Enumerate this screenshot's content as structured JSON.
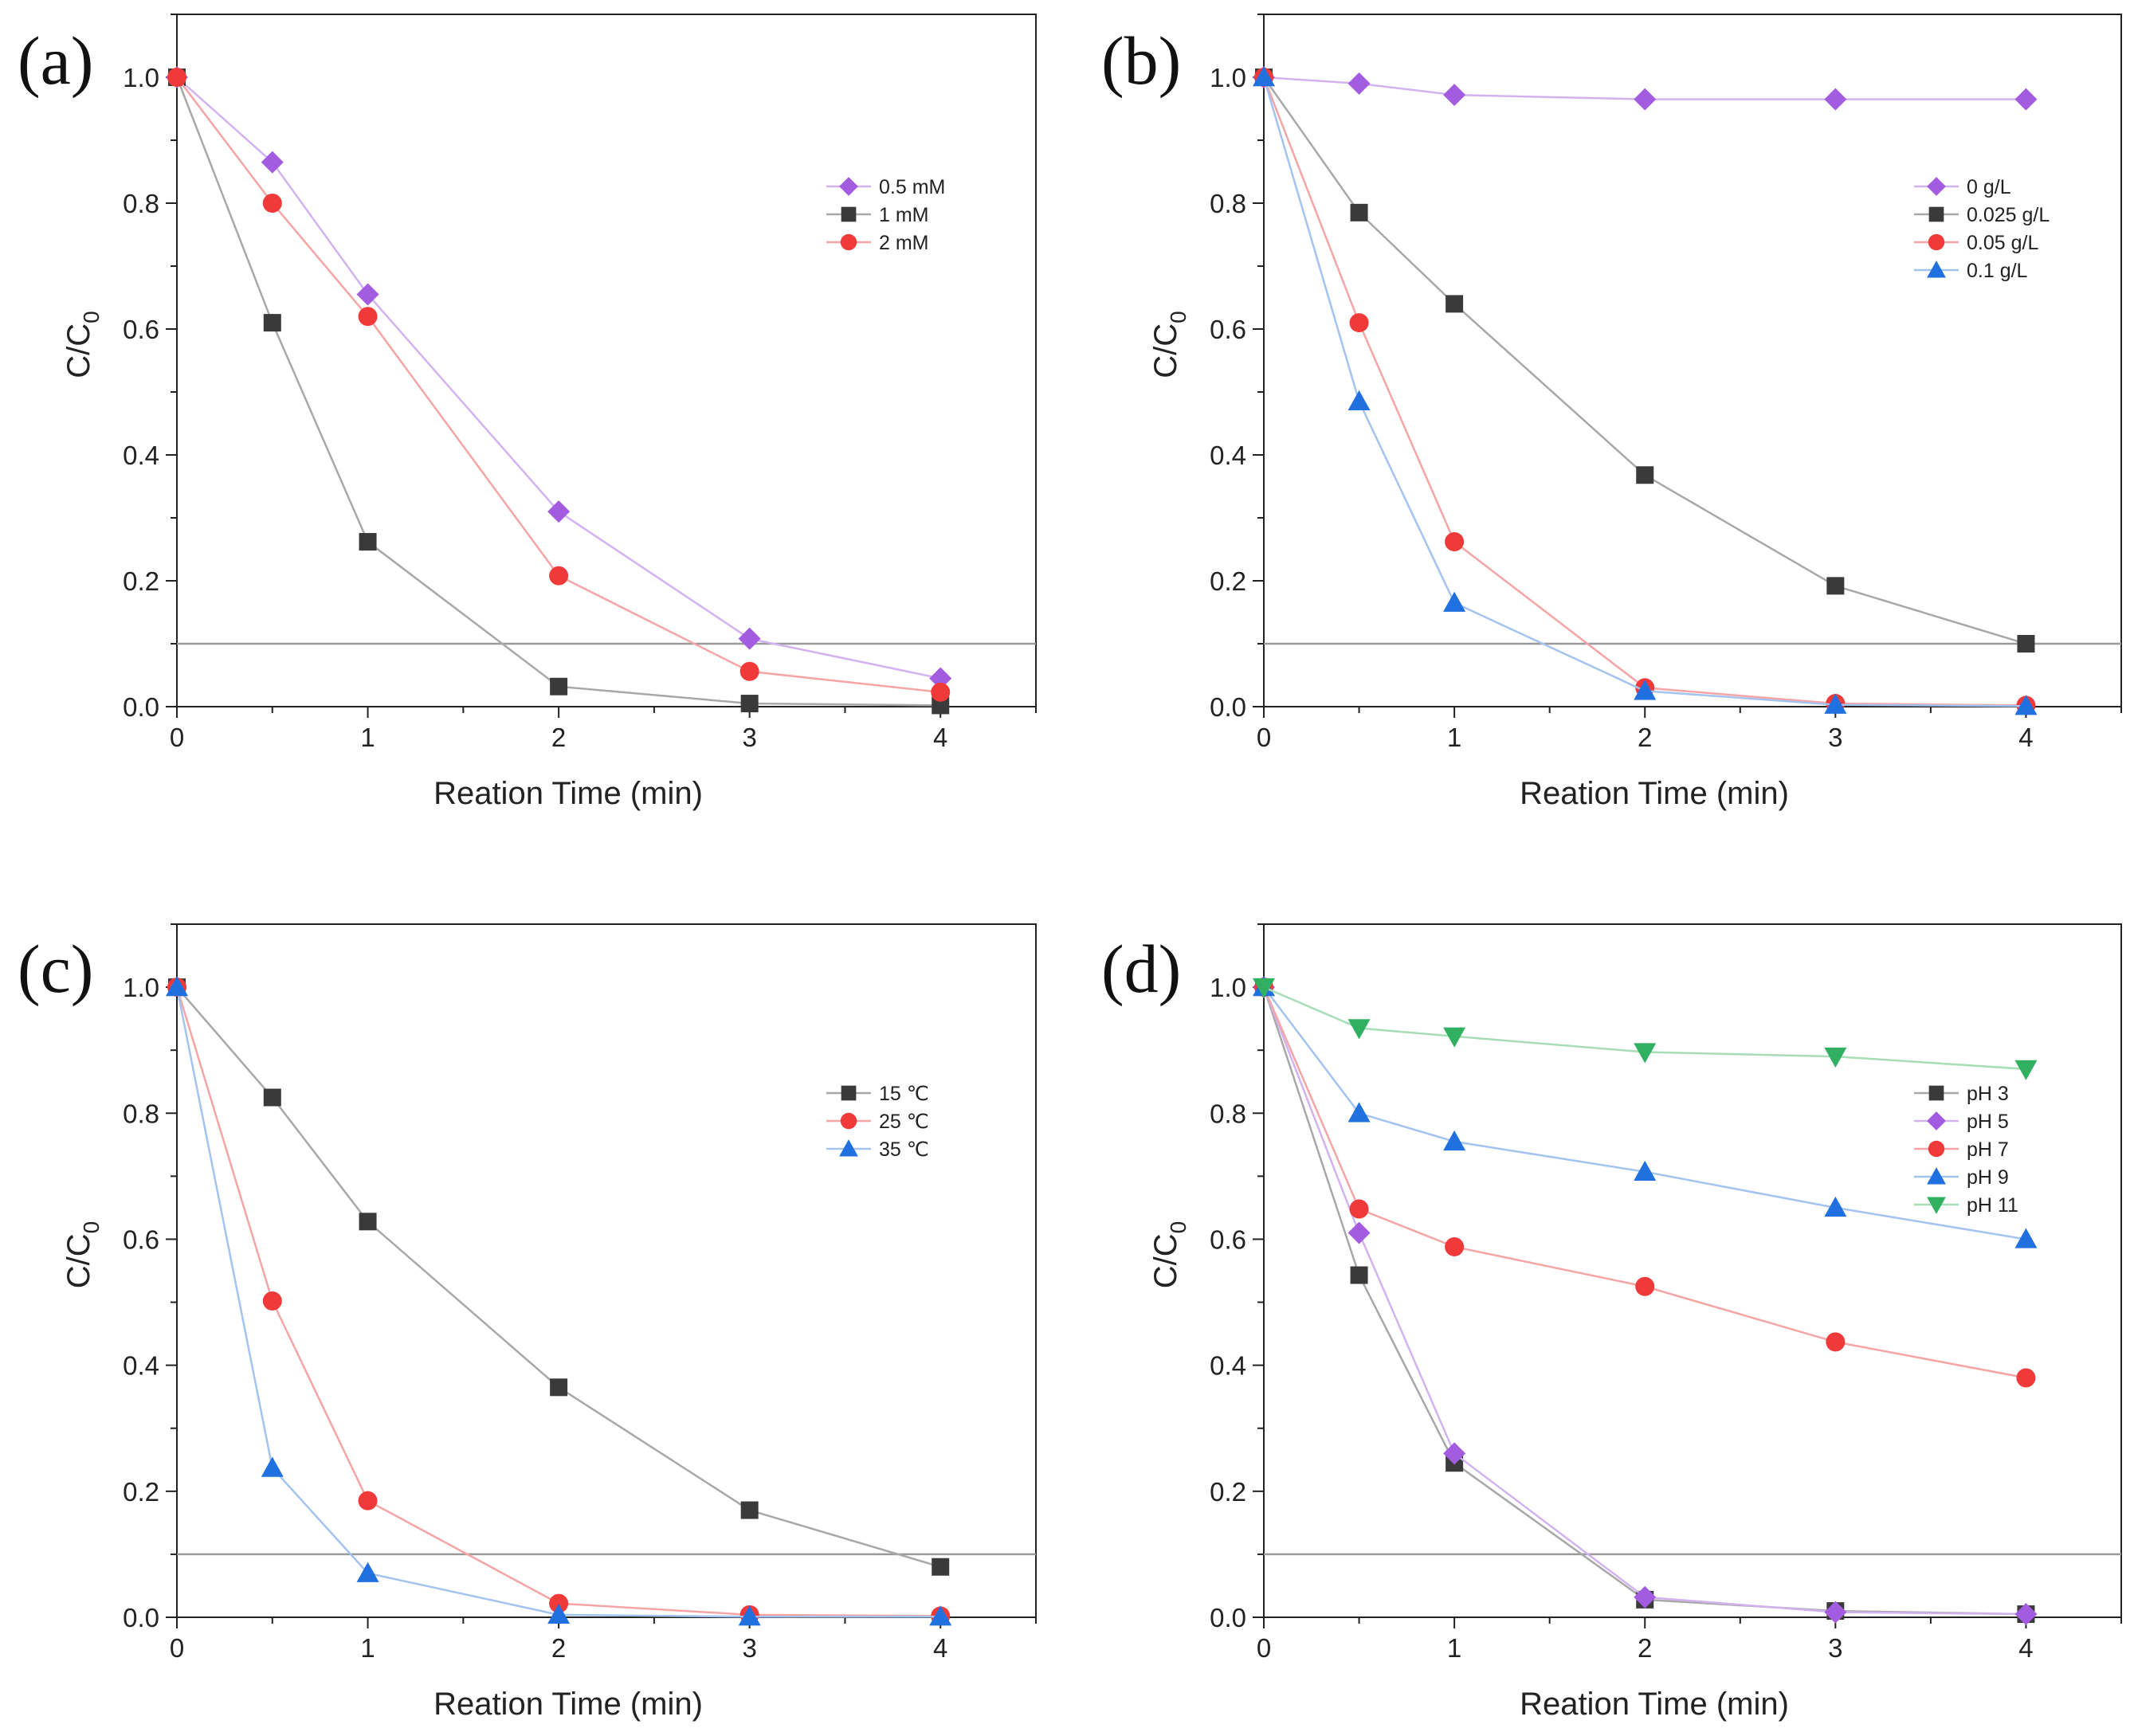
{
  "figure": {
    "panels": [
      {
        "label": "(a)",
        "xlabel": "Reation Time (min)",
        "ylabel_main": "C/C",
        "ylabel_sub": "0"
      },
      {
        "label": "(b)",
        "xlabel": "Reation Time (min)",
        "ylabel_main": "C/C",
        "ylabel_sub": "0"
      },
      {
        "label": "(c)",
        "xlabel": "Reation Time (min)",
        "ylabel_main": "C/C",
        "ylabel_sub": "0"
      },
      {
        "label": "(d)",
        "xlabel": "Reation Time (min)",
        "ylabel_main": "C/C",
        "ylabel_sub": "0"
      }
    ]
  },
  "chart_data": [
    {
      "type": "line",
      "panel": "(a)",
      "xlabel": "Reation Time (min)",
      "ylabel": "C/C0",
      "xlim": [
        0,
        4.5
      ],
      "ylim": [
        0,
        1.1
      ],
      "xticks": [
        "0",
        "1",
        "2",
        "3",
        "4"
      ],
      "yticks": [
        "0.0",
        "0.2",
        "0.4",
        "0.6",
        "0.8",
        "1.0"
      ],
      "reference_line": 0.1,
      "legend_position": "top-right",
      "x": [
        0,
        0.5,
        1,
        2,
        3,
        4
      ],
      "series": [
        {
          "name": "0.5 mM",
          "marker": "diamond",
          "color": "#A35BE0",
          "line_color": "#D2B3F0",
          "values": [
            1.0,
            0.865,
            0.655,
            0.31,
            0.108,
            0.045
          ]
        },
        {
          "name": "1 mM",
          "marker": "square",
          "color": "#3A3A3A",
          "line_color": "#A8A8A8",
          "values": [
            1.0,
            0.61,
            0.262,
            0.032,
            0.005,
            0.002
          ]
        },
        {
          "name": "2 mM",
          "marker": "circle",
          "color": "#F03A3A",
          "line_color": "#F5A5A5",
          "values": [
            1.0,
            0.8,
            0.62,
            0.208,
            0.056,
            0.023
          ]
        }
      ]
    },
    {
      "type": "line",
      "panel": "(b)",
      "xlabel": "Reation Time (min)",
      "ylabel": "C/C0",
      "xlim": [
        0,
        4.5
      ],
      "ylim": [
        0,
        1.1
      ],
      "xticks": [
        "0",
        "1",
        "2",
        "3",
        "4"
      ],
      "yticks": [
        "0.0",
        "0.2",
        "0.4",
        "0.6",
        "0.8",
        "1.0"
      ],
      "reference_line": 0.1,
      "legend_position": "top-right",
      "x": [
        0,
        0.5,
        1,
        2,
        3,
        4
      ],
      "series": [
        {
          "name": "0 g/L",
          "marker": "diamond",
          "color": "#A35BE0",
          "line_color": "#D2B3F0",
          "values": [
            1.0,
            0.99,
            0.972,
            0.965,
            0.965,
            0.965
          ]
        },
        {
          "name": "0.025 g/L",
          "marker": "square",
          "color": "#3A3A3A",
          "line_color": "#A8A8A8",
          "values": [
            1.0,
            0.785,
            0.64,
            0.368,
            0.192,
            0.1
          ]
        },
        {
          "name": "0.05 g/L",
          "marker": "circle",
          "color": "#F03A3A",
          "line_color": "#F5A5A5",
          "values": [
            1.0,
            0.61,
            0.262,
            0.03,
            0.005,
            0.002
          ]
        },
        {
          "name": "0.1 g/L",
          "marker": "triangle-up",
          "color": "#2070E0",
          "line_color": "#A5C3F0",
          "values": [
            1.0,
            0.485,
            0.165,
            0.025,
            0.003,
            0.001
          ]
        }
      ]
    },
    {
      "type": "line",
      "panel": "(c)",
      "xlabel": "Reation Time (min)",
      "ylabel": "C/C0",
      "xlim": [
        0,
        4.5
      ],
      "ylim": [
        0,
        1.1
      ],
      "xticks": [
        "0",
        "1",
        "2",
        "3",
        "4"
      ],
      "yticks": [
        "0.0",
        "0.2",
        "0.4",
        "0.6",
        "0.8",
        "1.0"
      ],
      "reference_line": 0.1,
      "legend_position": "center-right",
      "x": [
        0,
        0.5,
        1,
        2,
        3,
        4
      ],
      "series": [
        {
          "name": "15 ℃",
          "marker": "square",
          "color": "#3A3A3A",
          "line_color": "#A8A8A8",
          "values": [
            1.0,
            0.825,
            0.628,
            0.365,
            0.17,
            0.08
          ]
        },
        {
          "name": "25 ℃",
          "marker": "circle",
          "color": "#F03A3A",
          "line_color": "#F5A5A5",
          "values": [
            1.0,
            0.502,
            0.185,
            0.022,
            0.004,
            0.002
          ]
        },
        {
          "name": "35 ℃",
          "marker": "triangle-up",
          "color": "#2070E0",
          "line_color": "#A5C3F0",
          "values": [
            1.0,
            0.237,
            0.07,
            0.004,
            0.001,
            0.001
          ]
        }
      ]
    },
    {
      "type": "line",
      "panel": "(d)",
      "xlabel": "Reation Time (min)",
      "ylabel": "C/C0",
      "xlim": [
        0,
        4.5
      ],
      "ylim": [
        0,
        1.1
      ],
      "xticks": [
        "0",
        "1",
        "2",
        "3",
        "4"
      ],
      "yticks": [
        "0.0",
        "0.2",
        "0.4",
        "0.6",
        "0.8",
        "1.0"
      ],
      "reference_line": 0.1,
      "legend_position": "center-right",
      "x": [
        0,
        0.5,
        1,
        2,
        3,
        4
      ],
      "series": [
        {
          "name": "pH 3",
          "marker": "square",
          "color": "#3A3A3A",
          "line_color": "#A8A8A8",
          "values": [
            1.0,
            0.543,
            0.245,
            0.028,
            0.01,
            0.005
          ]
        },
        {
          "name": "pH 5",
          "marker": "diamond",
          "color": "#A35BE0",
          "line_color": "#D2B3F0",
          "values": [
            1.0,
            0.61,
            0.26,
            0.032,
            0.008,
            0.005
          ]
        },
        {
          "name": "pH 7",
          "marker": "circle",
          "color": "#F03A3A",
          "line_color": "#F5A5A5",
          "values": [
            1.0,
            0.648,
            0.588,
            0.525,
            0.437,
            0.38
          ]
        },
        {
          "name": "pH 9",
          "marker": "triangle-up",
          "color": "#2070E0",
          "line_color": "#A5C3F0",
          "values": [
            1.0,
            0.8,
            0.755,
            0.707,
            0.65,
            0.6
          ]
        },
        {
          "name": "pH 11",
          "marker": "triangle-down",
          "color": "#30B060",
          "line_color": "#A8DDB8",
          "values": [
            1.0,
            0.935,
            0.922,
            0.897,
            0.89,
            0.87
          ]
        }
      ]
    }
  ]
}
